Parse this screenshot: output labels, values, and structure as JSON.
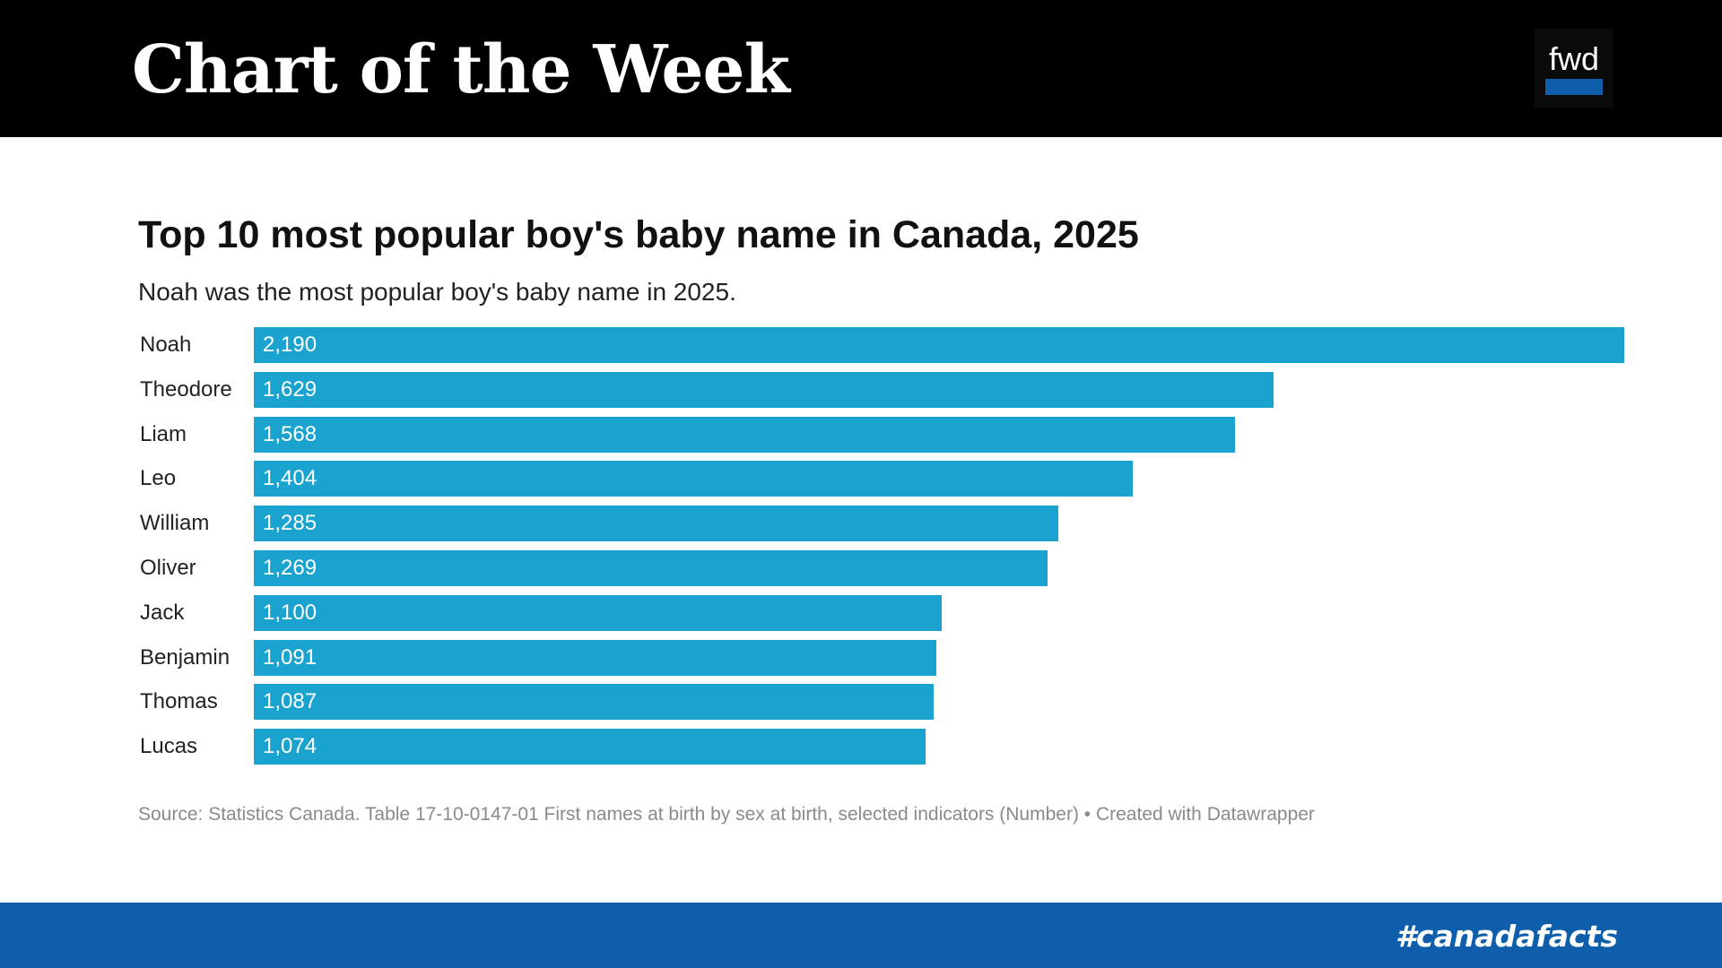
{
  "header": {
    "title": "Chart of the Week",
    "logo_text": "fwd"
  },
  "footer": {
    "hashtag": "#canadafacts"
  },
  "colors": {
    "header_bg": "#000000",
    "bar": "#1ba3d0",
    "footer_bg": "#0f5eab",
    "logo_accent": "#0f5eab"
  },
  "chart_data": {
    "type": "bar",
    "orientation": "horizontal",
    "title": "Top 10 most popular boy's baby name in Canada, 2025",
    "subtitle": "Noah was the most popular boy's baby name in 2025.",
    "categories": [
      "Noah",
      "Theodore",
      "Liam",
      "Leo",
      "William",
      "Oliver",
      "Jack",
      "Benjamin",
      "Thomas",
      "Lucas"
    ],
    "values": [
      2190,
      1629,
      1568,
      1404,
      1285,
      1269,
      1100,
      1091,
      1087,
      1074
    ],
    "value_labels": [
      "2,190",
      "1,629",
      "1,568",
      "1,404",
      "1,285",
      "1,269",
      "1,100",
      "1,091",
      "1,087",
      "1,074"
    ],
    "xlim": [
      0,
      2190
    ],
    "grid": false,
    "source": "Source: Statistics Canada. Table 17-10-0147-01 First names at birth by sex at birth, selected indicators (Number) • Created with Datawrapper"
  }
}
